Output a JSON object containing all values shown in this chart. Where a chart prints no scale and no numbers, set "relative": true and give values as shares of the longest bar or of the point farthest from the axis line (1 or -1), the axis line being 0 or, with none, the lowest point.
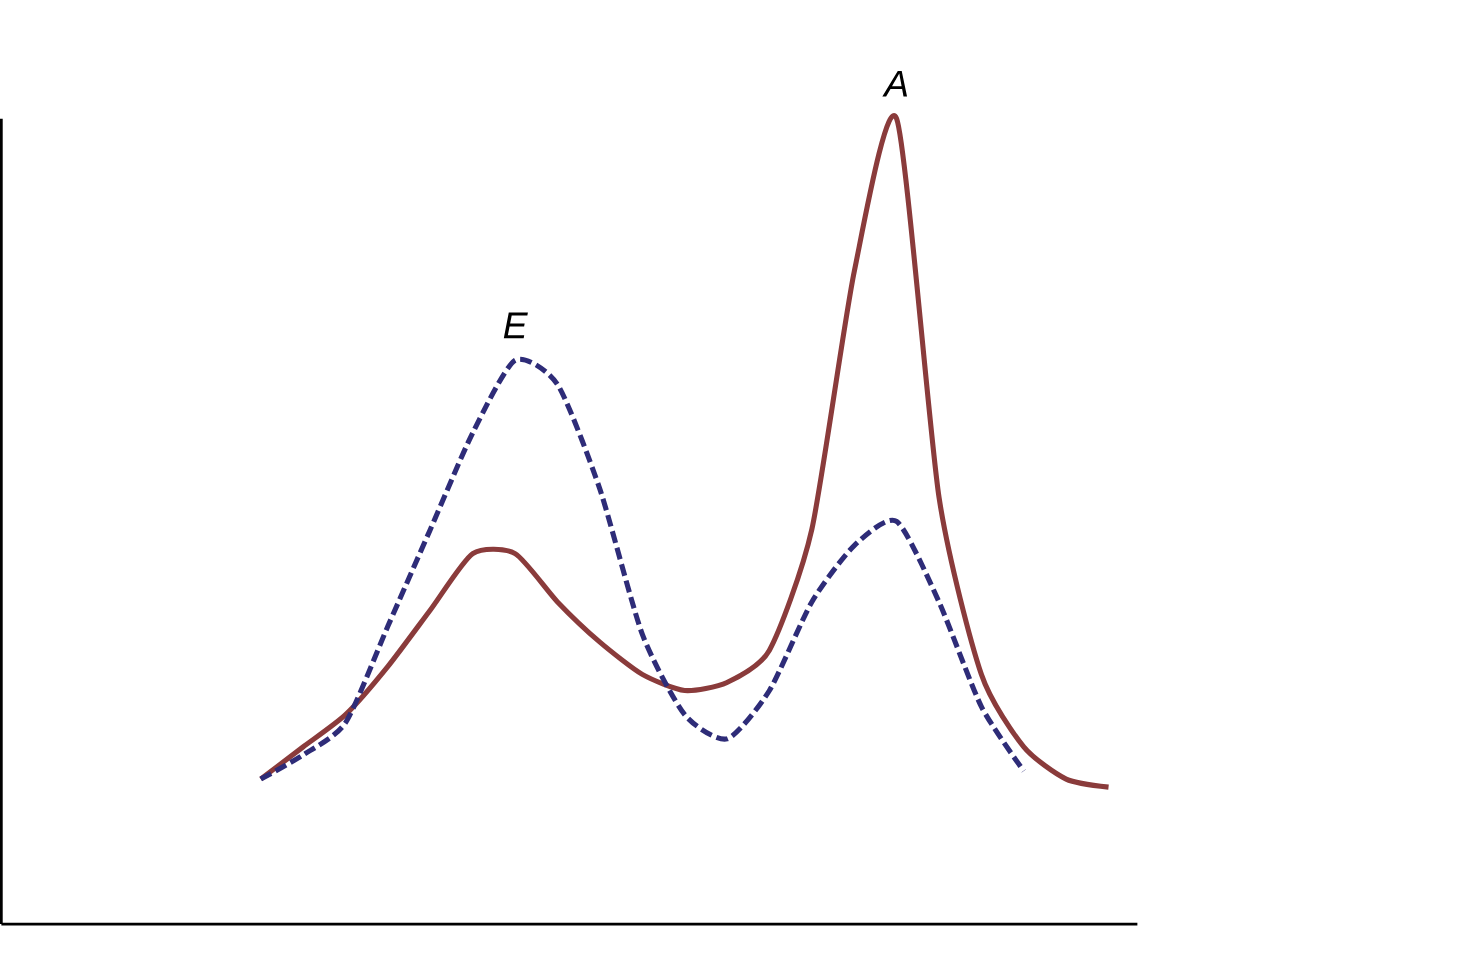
{
  "chart_data": {
    "type": "line",
    "relative": true,
    "categories": [
      null,
      null,
      null,
      null,
      null,
      null,
      null,
      null,
      null,
      null,
      null,
      null,
      null,
      null,
      null,
      null,
      null,
      null,
      null,
      null,
      null
    ],
    "series": [
      {
        "color": "#8a3b3b",
        "line_style": "solid",
        "values": [
          0.18,
          0.22,
          0.26,
          0.32,
          0.39,
          0.46,
          0.46,
          0.4,
          0.35,
          0.31,
          0.29,
          0.3,
          0.34,
          0.49,
          0.81,
          1.0,
          0.53,
          0.31,
          0.22,
          0.18,
          0.17
        ]
      },
      {
        "color": "#2e2c78",
        "line_style": "dashed",
        "values": [
          0.18,
          0.21,
          0.25,
          0.37,
          0.49,
          0.61,
          0.7,
          0.67,
          0.54,
          0.36,
          0.26,
          0.23,
          0.29,
          0.4,
          0.47,
          0.5,
          0.4,
          0.27,
          0.19,
          null,
          null
        ]
      }
    ],
    "annotations": [
      "A",
      "E"
    ]
  }
}
